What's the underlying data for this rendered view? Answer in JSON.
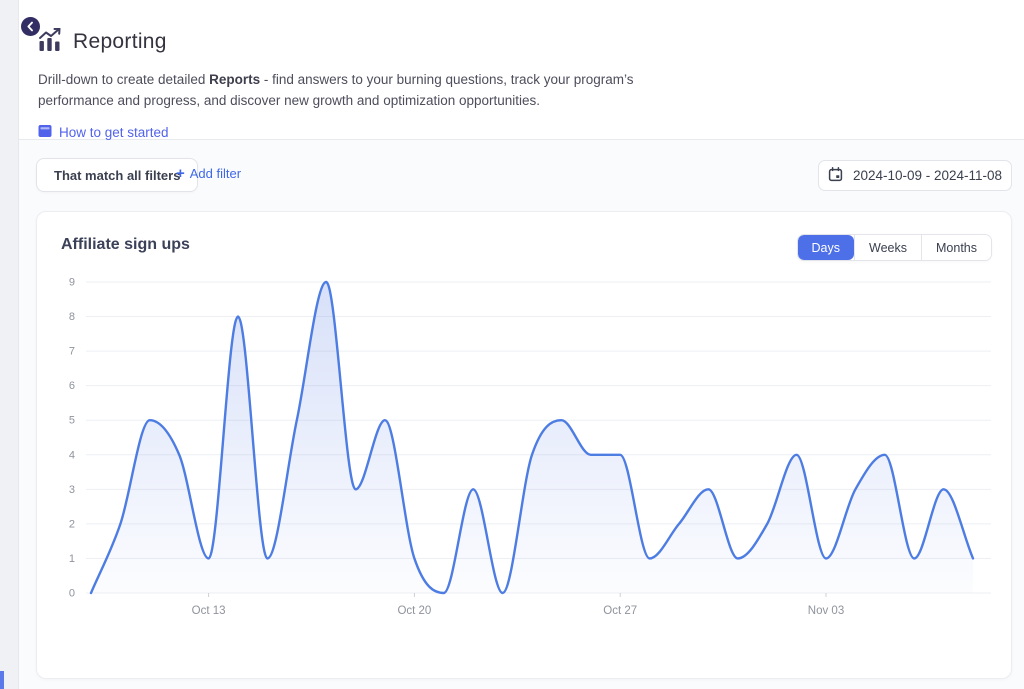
{
  "page": {
    "back_label": "back"
  },
  "header": {
    "title": "Reporting",
    "description": {
      "part1": "Drill-down to create detailed ",
      "bold": "Reports",
      "part2": " - find answers to your burning questions, track your program’s performance and progress, and discover new growth and optimization opportunities."
    },
    "howto_link": "How to get started"
  },
  "filters": {
    "match_button": "That match all filters",
    "add_filter_plus": "+",
    "add_filter_label": "Add filter",
    "date_range": "2024-10-09 - 2024-11-08"
  },
  "chart_card": {
    "title": "Affiliate sign ups",
    "periods": [
      "Days",
      "Weeks",
      "Months"
    ],
    "active_period": "Days"
  },
  "chart_data": {
    "type": "area",
    "title": "Affiliate sign ups",
    "dates": [
      "Oct 09",
      "Oct 10",
      "Oct 11",
      "Oct 12",
      "Oct 13",
      "Oct 14",
      "Oct 15",
      "Oct 16",
      "Oct 17",
      "Oct 18",
      "Oct 19",
      "Oct 20",
      "Oct 21",
      "Oct 22",
      "Oct 23",
      "Oct 24",
      "Oct 25",
      "Oct 26",
      "Oct 27",
      "Oct 28",
      "Oct 29",
      "Oct 30",
      "Oct 31",
      "Nov 01",
      "Nov 02",
      "Nov 03",
      "Nov 04",
      "Nov 05",
      "Nov 06",
      "Nov 07",
      "Nov 08"
    ],
    "values": [
      0,
      2,
      5,
      4,
      1,
      8,
      1,
      5,
      9,
      3,
      5,
      1,
      0,
      3,
      0,
      4,
      5,
      4,
      4,
      1,
      2,
      3,
      1,
      2,
      4,
      1,
      3,
      4,
      1,
      3,
      1
    ],
    "xticks": [
      {
        "index": 4,
        "label": "Oct 13"
      },
      {
        "index": 11,
        "label": "Oct 20"
      },
      {
        "index": 18,
        "label": "Oct 27"
      },
      {
        "index": 25,
        "label": "Nov 03"
      }
    ],
    "ylim": [
      0,
      9
    ],
    "ytick_step": 1,
    "grid": true,
    "legend": "none",
    "line_color": "#4d7ce2",
    "area_top_color": "rgba(90,127,229,0.24)",
    "area_bottom_color": "rgba(90,127,229,0.02)",
    "grid_color": "#edeff3",
    "tick_color": "#cdd0d6",
    "axis_label_color": "#8f939c"
  },
  "colors": {
    "accent_blue": "#4d6fe8",
    "howto_link_blue": "#5263eb",
    "add_filter_blue": "#3e68e8",
    "back_navy": "#322e63",
    "card_border": "#ecedf1"
  }
}
